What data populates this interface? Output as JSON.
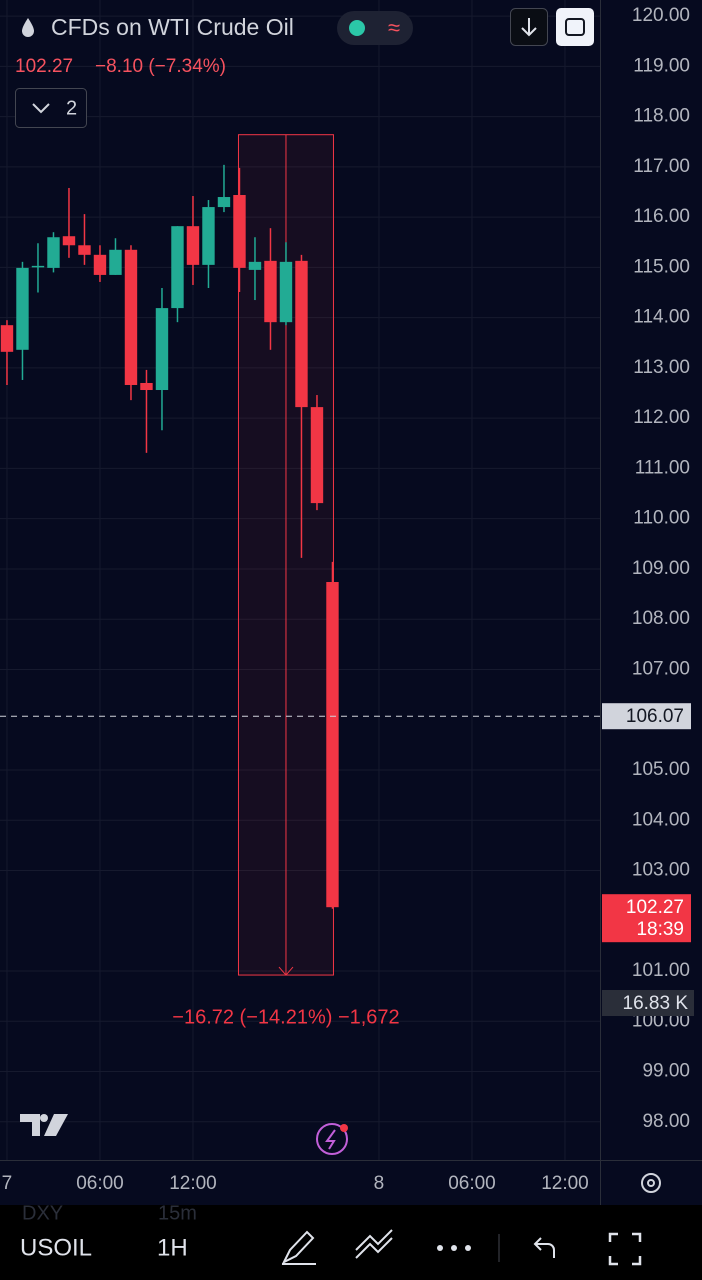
{
  "header": {
    "title": "CFDs on WTI Crude Oil",
    "price": "102.27",
    "change": "−8.10 (−7.34%)",
    "indicators": "2"
  },
  "chart_data": {
    "type": "candlestick",
    "x": [
      0,
      1,
      2,
      3,
      4,
      5,
      6,
      7,
      8,
      9,
      10,
      11,
      12,
      13,
      14,
      15,
      16,
      17,
      18,
      19,
      20,
      21
    ],
    "open": [
      113.85,
      113.36,
      115.0,
      114.99,
      115.62,
      115.44,
      115.25,
      114.85,
      115.35,
      112.7,
      112.56,
      114.19,
      115.82,
      115.05,
      116.2,
      116.44,
      114.95,
      115.13,
      113.91,
      115.13,
      112.22,
      108.74
    ],
    "high": [
      113.95,
      115.11,
      115.48,
      115.7,
      116.58,
      116.06,
      115.44,
      115.58,
      115.44,
      112.96,
      114.59,
      115.82,
      116.42,
      116.34,
      117.04,
      116.98,
      115.6,
      115.78,
      115.5,
      115.25,
      112.46,
      109.14
    ],
    "low": [
      112.66,
      112.76,
      114.5,
      114.9,
      115.19,
      115.05,
      114.71,
      114.85,
      112.36,
      111.31,
      111.76,
      113.91,
      114.65,
      114.59,
      116.1,
      114.51,
      114.35,
      113.36,
      113.85,
      109.22,
      110.17,
      102.24
    ],
    "close": [
      113.32,
      114.99,
      115.03,
      115.6,
      115.44,
      115.25,
      114.85,
      115.35,
      112.66,
      112.56,
      114.19,
      115.82,
      115.05,
      116.2,
      116.4,
      114.99,
      115.11,
      113.91,
      115.11,
      112.22,
      110.31,
      102.27
    ],
    "up_color": "#22ab94",
    "down_color": "#f23645",
    "xlim": [
      -0.45,
      38.26
    ],
    "xticks": [
      {
        "value": 0,
        "label": "7"
      },
      {
        "value": 6,
        "label": "06:00"
      },
      {
        "value": 12,
        "label": "12:00"
      },
      {
        "value": 24,
        "label": "8"
      },
      {
        "value": 30,
        "label": "06:00"
      },
      {
        "value": 36,
        "label": "12:00"
      }
    ],
    "ylim": [
      97.24,
      120.32
    ],
    "yticks": [
      {
        "value": 98,
        "label": "98.00"
      },
      {
        "value": 99,
        "label": "99.00"
      },
      {
        "value": 100,
        "label": "100.00"
      },
      {
        "value": 101,
        "label": "101.00"
      },
      {
        "value": 103,
        "label": "103.00"
      },
      {
        "value": 104,
        "label": "104.00"
      },
      {
        "value": 105,
        "label": "105.00"
      },
      {
        "value": 107,
        "label": "107.00"
      },
      {
        "value": 108,
        "label": "108.00"
      },
      {
        "value": 109,
        "label": "109.00"
      },
      {
        "value": 110,
        "label": "110.00"
      },
      {
        "value": 111,
        "label": "111.00"
      },
      {
        "value": 112,
        "label": "112.00"
      },
      {
        "value": 113,
        "label": "113.00"
      },
      {
        "value": 114,
        "label": "114.00"
      },
      {
        "value": 115,
        "label": "115.00"
      },
      {
        "value": 116,
        "label": "116.00"
      },
      {
        "value": 117,
        "label": "117.00"
      },
      {
        "value": 118,
        "label": "118.00"
      },
      {
        "value": 119,
        "label": "119.00"
      },
      {
        "value": 120,
        "label": "120.00"
      }
    ],
    "grid": true,
    "crosshair": 106.07,
    "last_price": 102.27,
    "countdown": "18:39",
    "volume_label": "16.83 K",
    "measure": {
      "start_x": 15,
      "end_x": 21,
      "start": 117.64,
      "end": 100.92,
      "label": "−16.72 (−14.21%) −1,672"
    }
  },
  "toolbar": {
    "symbol": "USOIL",
    "interval": "1H",
    "ghost_symbol": "DXY",
    "ghost_interval": "15m"
  }
}
